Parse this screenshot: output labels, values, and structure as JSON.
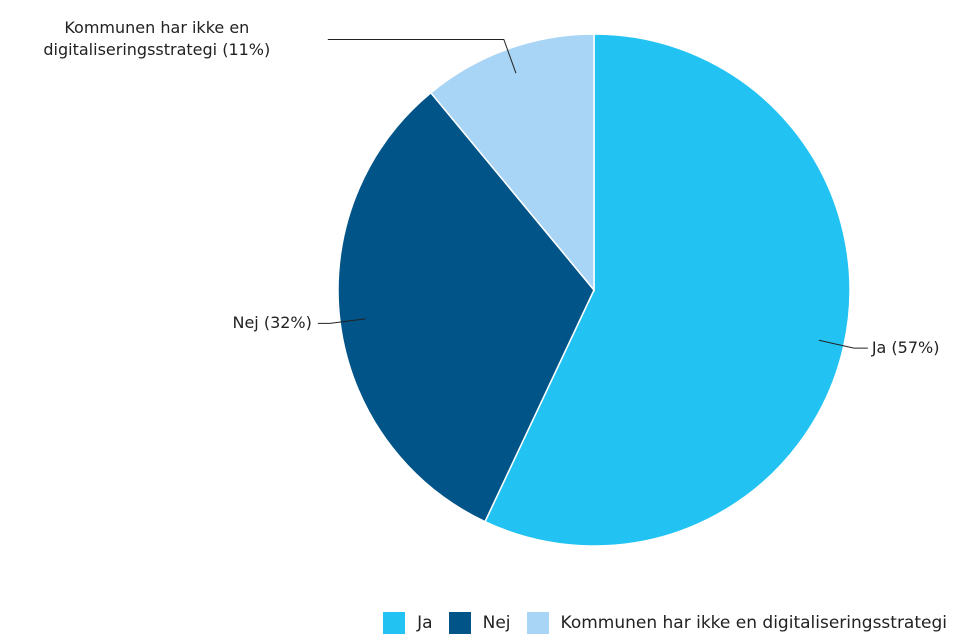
{
  "chart_data": {
    "type": "pie",
    "categories": [
      "Ja",
      "Nej",
      "Kommunen har ikke en digitaliseringsstrategi"
    ],
    "values": [
      57,
      32,
      11
    ],
    "value_labels": [
      "Ja (57%)",
      "Nej (32%)",
      "Kommunen har ikke en digitaliseringsstrategi (11%)"
    ],
    "colors": [
      "#22c3f3",
      "#015488",
      "#a8d4f5"
    ],
    "legend": "bottom-right"
  }
}
